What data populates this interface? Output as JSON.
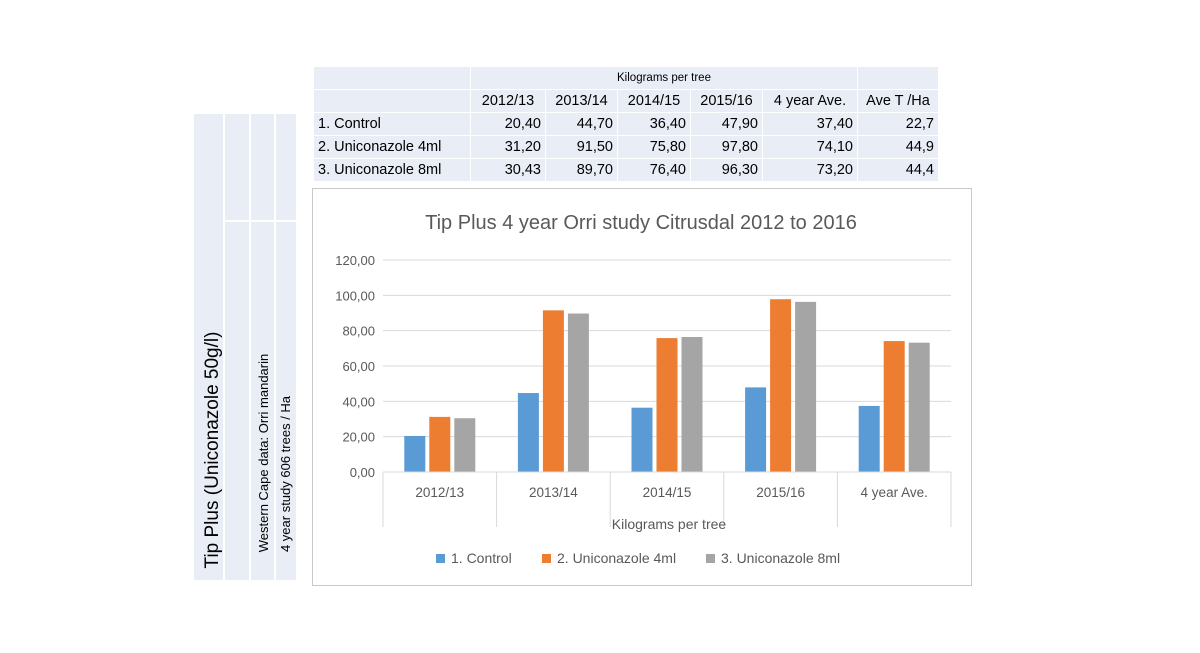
{
  "table": {
    "group_header": "Kilograms per tree",
    "columns": [
      "2012/13",
      "2013/14",
      "2014/15",
      "2015/16",
      "4 year Ave.",
      "Ave T /Ha"
    ],
    "rows": [
      {
        "label": "1. Control",
        "values": [
          "20,40",
          "44,70",
          "36,40",
          "47,90",
          "37,40",
          "22,7"
        ]
      },
      {
        "label": "2. Uniconazole  4ml",
        "values": [
          "31,20",
          "91,50",
          "75,80",
          "97,80",
          "74,10",
          "44,9"
        ]
      },
      {
        "label": "3. Uniconazole  8ml",
        "values": [
          "30,43",
          "89,70",
          "76,40",
          "96,30",
          "73,20",
          "44,4"
        ]
      }
    ]
  },
  "side_labels": {
    "product": "Tip Plus (Uniconazole 50g/l)",
    "region": "Western Cape data: Orri mandarin",
    "study": "4 year study  606 trees / Ha"
  },
  "chart_data": {
    "type": "bar",
    "title": "Tip Plus 4 year Orri study Citrusdal 2012 to 2016",
    "xlabel": "Kilograms per tree",
    "ylabel": "",
    "categories": [
      "2012/13",
      "2013/14",
      "2014/15",
      "2015/16",
      "4 year Ave."
    ],
    "ylim": [
      0,
      120
    ],
    "yticks": [
      "0,00",
      "20,00",
      "40,00",
      "60,00",
      "80,00",
      "100,00",
      "120,00"
    ],
    "grid": true,
    "legend": "bottom",
    "series": [
      {
        "name": "1. Control",
        "color": "#5b9bd5",
        "values": [
          20.4,
          44.7,
          36.4,
          47.9,
          37.4
        ]
      },
      {
        "name": "2. Uniconazole  4ml",
        "color": "#ed7d31",
        "values": [
          31.2,
          91.5,
          75.8,
          97.8,
          74.1
        ]
      },
      {
        "name": "3. Uniconazole  8ml",
        "color": "#a5a5a5",
        "values": [
          30.43,
          89.7,
          76.4,
          96.3,
          73.2
        ]
      }
    ]
  }
}
